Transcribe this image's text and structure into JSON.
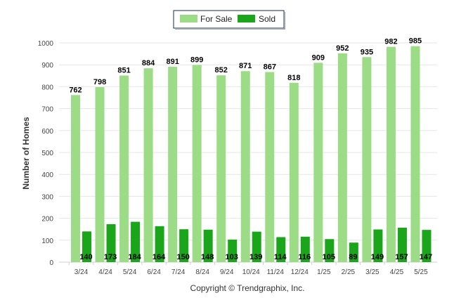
{
  "chart_data": {
    "type": "bar",
    "ylabel": "Number of Homes",
    "xlabel": "",
    "ylim": [
      0,
      1000
    ],
    "yticks": [
      "0",
      "100",
      "200",
      "300",
      "400",
      "500",
      "600",
      "700",
      "800",
      "900",
      "1000"
    ],
    "grid": true,
    "legend_position": "top-center",
    "categories": [
      "3/24",
      "4/24",
      "5/24",
      "6/24",
      "7/24",
      "8/24",
      "9/24",
      "10/24",
      "11/24",
      "12/24",
      "1/25",
      "2/25",
      "3/25",
      "4/25",
      "5/25"
    ],
    "series": [
      {
        "name": "For Sale",
        "color": "#9cdc86",
        "values": [
          762,
          798,
          851,
          884,
          891,
          899,
          852,
          871,
          867,
          818,
          909,
          952,
          935,
          982,
          985
        ]
      },
      {
        "name": "Sold",
        "color": "#1aa51a",
        "values": [
          140,
          173,
          184,
          164,
          150,
          148,
          103,
          139,
          114,
          116,
          105,
          89,
          149,
          157,
          147
        ]
      }
    ]
  },
  "footer": {
    "copyright": "Copyright © Trendgraphix, Inc."
  }
}
